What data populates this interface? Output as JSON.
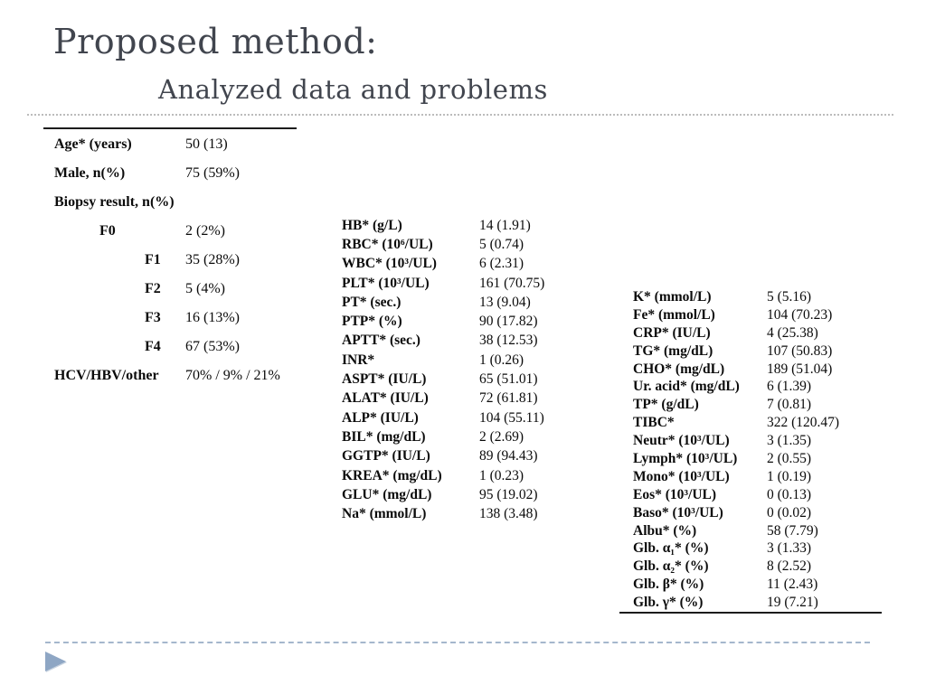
{
  "slide": {
    "title": "Proposed method:",
    "subtitle": "Analyzed data and problems"
  },
  "colors": {
    "title_color": "#41454e",
    "dotted_rule": "#bcbcbc",
    "dashed_rule": "#a5b7cd",
    "arrow_color": "#8ea6c4",
    "table_text": "#0b0b0b"
  },
  "icons": {
    "footer_arrow": "play-triangle-right"
  },
  "tables": {
    "demographics": {
      "rows": [
        {
          "label": "Age* (years)",
          "value": "50 (13)",
          "ind": "ind0"
        },
        {
          "label": "Male, n(%)",
          "value": "75 (59%)",
          "ind": "ind0"
        },
        {
          "label": "Biopsy result, n(%)",
          "value": "",
          "ind": "ind0"
        },
        {
          "label": "F0",
          "value": "2 (2%)",
          "ind": "ind1"
        },
        {
          "label": "F1",
          "value": "35 (28%)",
          "ind": "ind2"
        },
        {
          "label": "F2",
          "value": "5 (4%)",
          "ind": "ind2"
        },
        {
          "label": "F3",
          "value": "16 (13%)",
          "ind": "ind2"
        },
        {
          "label": "F4",
          "value": "67 (53%)",
          "ind": "ind2"
        },
        {
          "label": "HCV/HBV/other",
          "value": "70% / 9% / 21%",
          "ind": "ind0"
        }
      ]
    },
    "labs_primary": {
      "rows": [
        {
          "label": "HB* (g/L)",
          "value": "14 (1.91)"
        },
        {
          "label": "RBC* (10⁶/UL)",
          "value": "5 (0.74)"
        },
        {
          "label": "WBC* (10³/UL)",
          "value": "6 (2.31)"
        },
        {
          "label": "PLT* (10³/UL)",
          "value": "161 (70.75)"
        },
        {
          "label": "PT* (sec.)",
          "value": "13 (9.04)"
        },
        {
          "label": "PTP* (%)",
          "value": "90 (17.82)"
        },
        {
          "label": "APTT* (sec.)",
          "value": "38 (12.53)"
        },
        {
          "label": "INR*",
          "value": "1 (0.26)"
        },
        {
          "label": "ASPT* (IU/L)",
          "value": "65 (51.01)"
        },
        {
          "label": "ALAT* (IU/L)",
          "value": "72 (61.81)"
        },
        {
          "label": "ALP* (IU/L)",
          "value": "104 (55.11)"
        },
        {
          "label": "BIL* (mg/dL)",
          "value": "2 (2.69)"
        },
        {
          "label": "GGTP* (IU/L)",
          "value": "89 (94.43)"
        },
        {
          "label": "KREA* (mg/dL)",
          "value": "1 (0.23)"
        },
        {
          "label": "GLU* (mg/dL)",
          "value": "95 (19.02)"
        },
        {
          "label": "Na* (mmol/L)",
          "value": "138 (3.48)"
        }
      ]
    },
    "labs_secondary": {
      "rows": [
        {
          "label": "K* (mmol/L)",
          "value": "5 (5.16)"
        },
        {
          "label": "Fe* (mmol/L)",
          "value": "104 (70.23)"
        },
        {
          "label": "CRP* (IU/L)",
          "value": "4 (25.38)"
        },
        {
          "label": "TG* (mg/dL)",
          "value": "107 (50.83)"
        },
        {
          "label": "CHO* (mg/dL)",
          "value": "189 (51.04)"
        },
        {
          "label": "Ur. acid* (mg/dL)",
          "value": "6 (1.39)"
        },
        {
          "label": "TP* (g/dL)",
          "value": "7 (0.81)"
        },
        {
          "label": "TIBC*",
          "value": "322 (120.47)"
        },
        {
          "label": "Neutr* (10³/UL)",
          "value": "3 (1.35)"
        },
        {
          "label": "Lymph* (10³/UL)",
          "value": "2 (0.55)"
        },
        {
          "label": "Mono* (10³/UL)",
          "value": "1 (0.19)"
        },
        {
          "label": "Eos* (10³/UL)",
          "value": "0 (0.13)"
        },
        {
          "label": "Baso* (10³/UL)",
          "value": "0 (0.02)"
        },
        {
          "label": "Albu* (%)",
          "value": "58 (7.79)"
        },
        {
          "label": "Glb. α₁* (%)",
          "value": "3 (1.33)"
        },
        {
          "label": "Glb. α₂* (%)",
          "value": "8 (2.52)"
        },
        {
          "label": "Glb. β* (%)",
          "value": "11 (2.43)"
        },
        {
          "label": "Glb. γ* (%)",
          "value": "19 (7.21)"
        }
      ]
    }
  }
}
